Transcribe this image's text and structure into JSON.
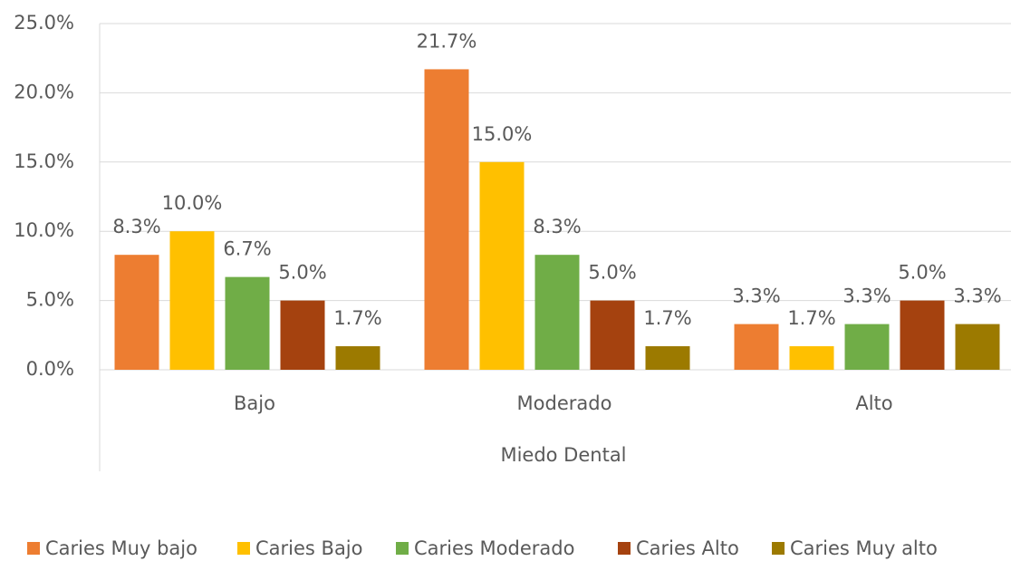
{
  "chart_data": {
    "type": "bar",
    "x_label": "Miedo Dental",
    "categories": [
      "Bajo",
      "Moderado",
      "Alto"
    ],
    "series": [
      {
        "name": "Caries Muy bajo",
        "color": "#ED7D31",
        "values": [
          8.3,
          21.7,
          3.3
        ],
        "value_labels": [
          "8.3%",
          "21.7%",
          "3.3%"
        ]
      },
      {
        "name": "Caries Bajo",
        "color": "#FFC000",
        "values": [
          10.0,
          15.0,
          1.7
        ],
        "value_labels": [
          "10.0%",
          "15.0%",
          "1.7%"
        ]
      },
      {
        "name": "Caries Moderado",
        "color": "#70AD47",
        "values": [
          6.7,
          8.3,
          3.3
        ],
        "value_labels": [
          "6.7%",
          "8.3%",
          "3.3%"
        ]
      },
      {
        "name": "Caries Alto",
        "color": "#A5420F",
        "values": [
          5.0,
          5.0,
          5.0
        ],
        "value_labels": [
          "5.0%",
          "5.0%",
          "5.0%"
        ]
      },
      {
        "name": "Caries Muy alto",
        "color": "#9C7A00",
        "values": [
          1.7,
          1.7,
          3.3
        ],
        "value_labels": [
          "1.7%",
          "1.7%",
          "3.3%"
        ]
      }
    ],
    "ylim": [
      0,
      25
    ],
    "yticks": [
      {
        "value": 0,
        "label": "0.0%"
      },
      {
        "value": 5,
        "label": "5.0%"
      },
      {
        "value": 10,
        "label": "10.0%"
      },
      {
        "value": 15,
        "label": "15.0%"
      },
      {
        "value": 20,
        "label": "20.0%"
      },
      {
        "value": 25,
        "label": "25.0%"
      }
    ],
    "grid": true,
    "legend": "bottom"
  }
}
